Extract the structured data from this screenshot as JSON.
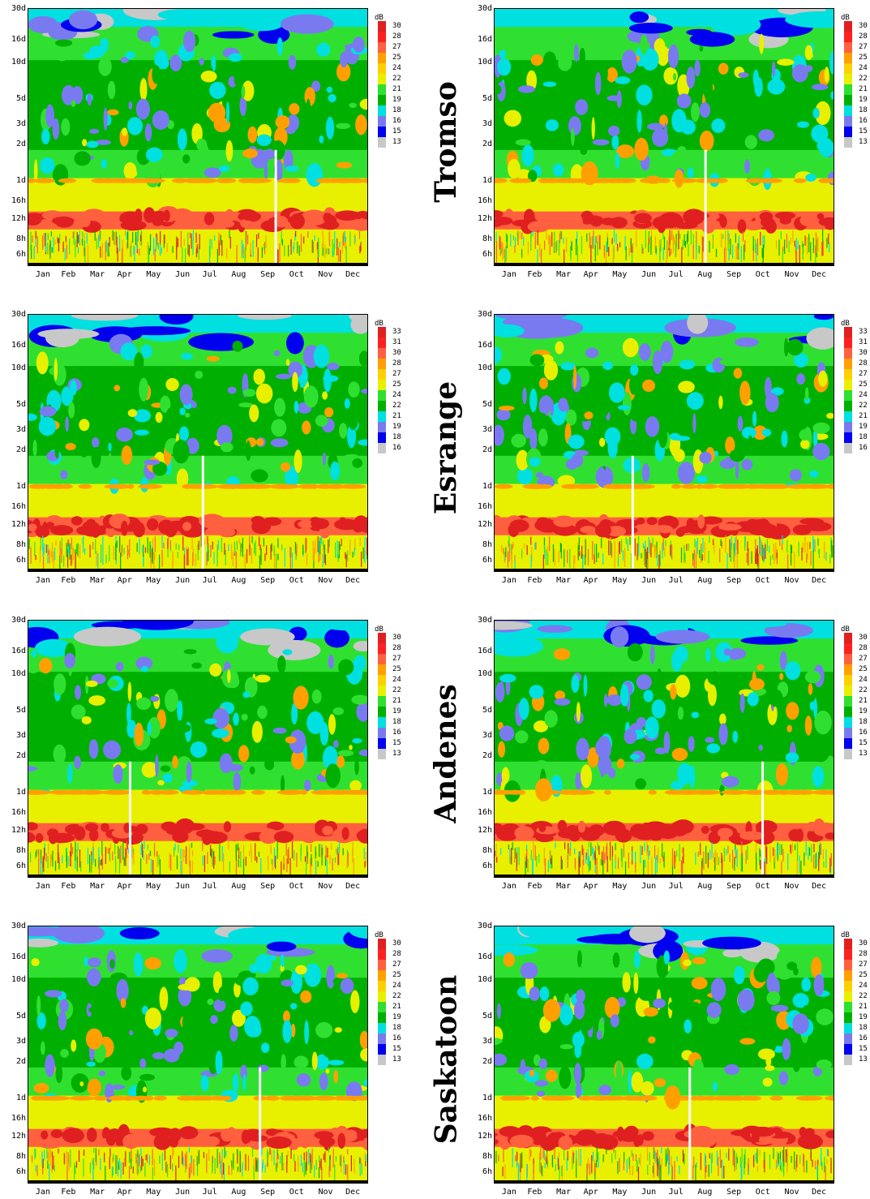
{
  "layout_columns": 2,
  "colorbar_title": "dB",
  "month_labels": [
    "Jan",
    "Feb",
    "Mar",
    "Apr",
    "May",
    "Jun",
    "Jul",
    "Aug",
    "Sep",
    "Oct",
    "Nov",
    "Dec"
  ],
  "period_labels": [
    "30d",
    "16d",
    "10d",
    "5d",
    "3d",
    "2d",
    "1d",
    "16h",
    "12h",
    "8h",
    "6h"
  ],
  "colors": [
    "#c8c8c8",
    "#0000ee",
    "#7a7af0",
    "#00e0e0",
    "#00b000",
    "#30e030",
    "#e8f000",
    "#ffa000",
    "#ff6040",
    "#e02020"
  ],
  "stations": [
    {
      "name": "Tromso",
      "left_levels": [
        "13",
        "15",
        "16",
        "18",
        "19",
        "21",
        "22",
        "24",
        "25",
        "27",
        "28",
        "30"
      ],
      "right_levels": [
        "13",
        "15",
        "16",
        "18",
        "19",
        "21",
        "22",
        "24",
        "25",
        "27",
        "28",
        "30"
      ]
    },
    {
      "name": "Esrange",
      "left_levels": [
        "16",
        "18",
        "19",
        "21",
        "22",
        "24",
        "25",
        "27",
        "28",
        "30",
        "31",
        "33"
      ],
      "right_levels": [
        "16",
        "18",
        "19",
        "21",
        "22",
        "24",
        "25",
        "27",
        "28",
        "30",
        "31",
        "33"
      ]
    },
    {
      "name": "Andenes",
      "left_levels": [
        "13",
        "15",
        "16",
        "18",
        "19",
        "21",
        "22",
        "24",
        "25",
        "27",
        "28",
        "30"
      ],
      "right_levels": [
        "13",
        "15",
        "16",
        "18",
        "19",
        "21",
        "22",
        "24",
        "25",
        "27",
        "28",
        "30"
      ]
    },
    {
      "name": "Saskatoon",
      "left_levels": [
        "13",
        "15",
        "16",
        "18",
        "19",
        "21",
        "22",
        "24",
        "25",
        "27",
        "28",
        "30"
      ],
      "right_levels": [
        "13",
        "15",
        "16",
        "18",
        "19",
        "21",
        "22",
        "24",
        "25",
        "27",
        "28",
        "30"
      ]
    }
  ],
  "chart_data": [
    {
      "type": "heatmap",
      "station": "Tromso",
      "column": "left",
      "x": [
        "Jan",
        "Feb",
        "Mar",
        "Apr",
        "May",
        "Jun",
        "Jul",
        "Aug",
        "Sep",
        "Oct",
        "Nov",
        "Dec"
      ],
      "y": [
        "30d",
        "16d",
        "10d",
        "5d",
        "3d",
        "2d",
        "1d",
        "16h",
        "12h",
        "8h",
        "6h"
      ],
      "colorbar_unit": "dB",
      "colorbar_levels": [
        13,
        15,
        16,
        18,
        19,
        21,
        22,
        24,
        25,
        27,
        28,
        30
      ]
    },
    {
      "type": "heatmap",
      "station": "Tromso",
      "column": "right",
      "x": [
        "Jan",
        "Feb",
        "Mar",
        "Apr",
        "May",
        "Jun",
        "Jul",
        "Aug",
        "Sep",
        "Oct",
        "Nov",
        "Dec"
      ],
      "y": [
        "30d",
        "16d",
        "10d",
        "5d",
        "3d",
        "2d",
        "1d",
        "16h",
        "12h",
        "8h",
        "6h"
      ],
      "colorbar_unit": "dB",
      "colorbar_levels": [
        13,
        15,
        16,
        18,
        19,
        21,
        22,
        24,
        25,
        27,
        28,
        30
      ]
    },
    {
      "type": "heatmap",
      "station": "Esrange",
      "column": "left",
      "x": [
        "Jan",
        "Feb",
        "Mar",
        "Apr",
        "May",
        "Jun",
        "Jul",
        "Aug",
        "Sep",
        "Oct",
        "Nov",
        "Dec"
      ],
      "y": [
        "30d",
        "16d",
        "10d",
        "5d",
        "3d",
        "2d",
        "1d",
        "16h",
        "12h",
        "8h",
        "6h"
      ],
      "colorbar_unit": "dB",
      "colorbar_levels": [
        16,
        18,
        19,
        21,
        22,
        24,
        25,
        27,
        28,
        30,
        31,
        33
      ]
    },
    {
      "type": "heatmap",
      "station": "Esrange",
      "column": "right",
      "x": [
        "Jan",
        "Feb",
        "Mar",
        "Apr",
        "May",
        "Jun",
        "Jul",
        "Aug",
        "Sep",
        "Oct",
        "Nov",
        "Dec"
      ],
      "y": [
        "30d",
        "16d",
        "10d",
        "5d",
        "3d",
        "2d",
        "1d",
        "16h",
        "12h",
        "8h",
        "6h"
      ],
      "colorbar_unit": "dB",
      "colorbar_levels": [
        16,
        18,
        19,
        21,
        22,
        24,
        25,
        27,
        28,
        30,
        31,
        33
      ]
    },
    {
      "type": "heatmap",
      "station": "Andenes",
      "column": "left",
      "x": [
        "Jan",
        "Feb",
        "Mar",
        "Apr",
        "May",
        "Jun",
        "Jul",
        "Aug",
        "Sep",
        "Oct",
        "Nov",
        "Dec"
      ],
      "y": [
        "30d",
        "16d",
        "10d",
        "5d",
        "3d",
        "2d",
        "1d",
        "16h",
        "12h",
        "8h",
        "6h"
      ],
      "colorbar_unit": "dB",
      "colorbar_levels": [
        13,
        15,
        16,
        18,
        19,
        21,
        22,
        24,
        25,
        27,
        28,
        30
      ]
    },
    {
      "type": "heatmap",
      "station": "Andenes",
      "column": "right",
      "x": [
        "Jan",
        "Feb",
        "Mar",
        "Apr",
        "May",
        "Jun",
        "Jul",
        "Aug",
        "Sep",
        "Oct",
        "Nov",
        "Dec"
      ],
      "y": [
        "30d",
        "16d",
        "10d",
        "5d",
        "3d",
        "2d",
        "1d",
        "16h",
        "12h",
        "8h",
        "6h"
      ],
      "colorbar_unit": "dB",
      "colorbar_levels": [
        13,
        15,
        16,
        18,
        19,
        21,
        22,
        24,
        25,
        27,
        28,
        30
      ]
    },
    {
      "type": "heatmap",
      "station": "Saskatoon",
      "column": "left",
      "x": [
        "Jan",
        "Feb",
        "Mar",
        "Apr",
        "May",
        "Jun",
        "Jul",
        "Aug",
        "Sep",
        "Oct",
        "Nov",
        "Dec"
      ],
      "y": [
        "30d",
        "16d",
        "10d",
        "5d",
        "3d",
        "2d",
        "1d",
        "16h",
        "12h",
        "8h",
        "6h"
      ],
      "colorbar_unit": "dB",
      "colorbar_levels": [
        13,
        15,
        16,
        18,
        19,
        21,
        22,
        24,
        25,
        27,
        28,
        30
      ]
    },
    {
      "type": "heatmap",
      "station": "Saskatoon",
      "column": "right",
      "x": [
        "Jan",
        "Feb",
        "Mar",
        "Apr",
        "May",
        "Jun",
        "Jul",
        "Aug",
        "Sep",
        "Oct",
        "Nov",
        "Dec"
      ],
      "y": [
        "30d",
        "16d",
        "10d",
        "5d",
        "3d",
        "2d",
        "1d",
        "16h",
        "12h",
        "8h",
        "6h"
      ],
      "colorbar_unit": "dB",
      "colorbar_levels": [
        13,
        15,
        16,
        18,
        19,
        21,
        22,
        24,
        25,
        27,
        28,
        30
      ]
    }
  ]
}
